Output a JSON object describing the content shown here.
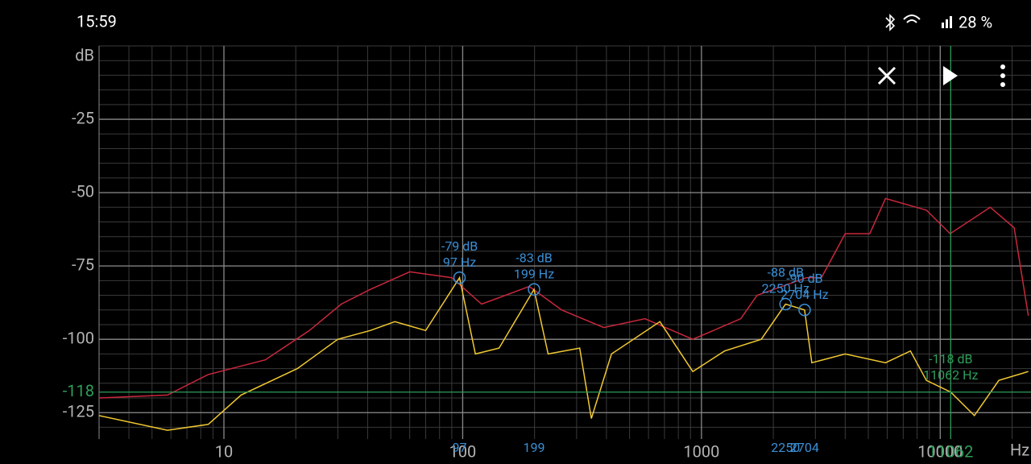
{
  "status_bar": {
    "time": "15:59",
    "battery": "28 %"
  },
  "chart_data": {
    "type": "line",
    "x_log": true,
    "grid": true,
    "minor_grid": true,
    "x_unit": "Hz",
    "y_unit": "dB",
    "xlim": [
      3,
      24000
    ],
    "xticks": [
      10,
      100,
      1000,
      10000
    ],
    "ylim": [
      -134,
      0
    ],
    "yticks": [
      -25,
      -50,
      -75,
      -100,
      -125
    ],
    "series": [
      {
        "color": "#c8283c",
        "x": [
          3,
          5.8,
          8.6,
          14.9,
          22.8,
          31,
          41,
          60,
          90,
          120,
          190,
          260,
          390,
          580,
          920,
          1460,
          1710,
          2750,
          3180,
          4000,
          5070,
          5900,
          8750,
          11000,
          16200,
          20400,
          23400
        ],
        "values": [
          -120,
          -119,
          -112,
          -107,
          -97,
          -88,
          -83,
          -77,
          -79,
          -88,
          -82,
          -90,
          -96,
          -93,
          -100,
          -93,
          -85,
          -79,
          -79,
          -64,
          -64,
          -52,
          -56,
          -64,
          -55,
          -62,
          -92
        ]
      },
      {
        "color": "#f0c832",
        "x": [
          3,
          5.8,
          8.6,
          11.8,
          20.3,
          30,
          41,
          52,
          70,
          97,
          113,
          142,
          199,
          228,
          309,
          346,
          420,
          670,
          920,
          1250,
          1780,
          2250,
          2704,
          2900,
          4000,
          5900,
          7500,
          8750,
          11062,
          13900,
          17600,
          23400
        ],
        "values": [
          -126,
          -131,
          -129,
          -119,
          -110,
          -100,
          -97,
          -94,
          -97,
          -79,
          -105,
          -103,
          -83,
          -105,
          -103,
          -127,
          -105,
          -94,
          -111,
          -104,
          -100,
          -88,
          -90,
          -108,
          -105,
          -108,
          -104,
          -114,
          -118,
          -126,
          -114,
          -111
        ]
      }
    ],
    "peaks": [
      {
        "x": 97,
        "y": -79,
        "db_label": "-79 dB",
        "hz_label": "97 Hz"
      },
      {
        "x": 199,
        "y": -83,
        "db_label": "-83 dB",
        "hz_label": "199 Hz"
      },
      {
        "x": 2250,
        "y": -88,
        "db_label": "-88 dB",
        "hz_label": "2250 Hz"
      },
      {
        "x": 2704,
        "y": -90,
        "db_label": "-90 dB",
        "hz_label": "2704 Hz"
      }
    ],
    "cursor": {
      "x": 11062,
      "y": -118,
      "db_label": "-118 dB",
      "hz_label": "11062 Hz",
      "color": "#2e9e5a"
    }
  }
}
